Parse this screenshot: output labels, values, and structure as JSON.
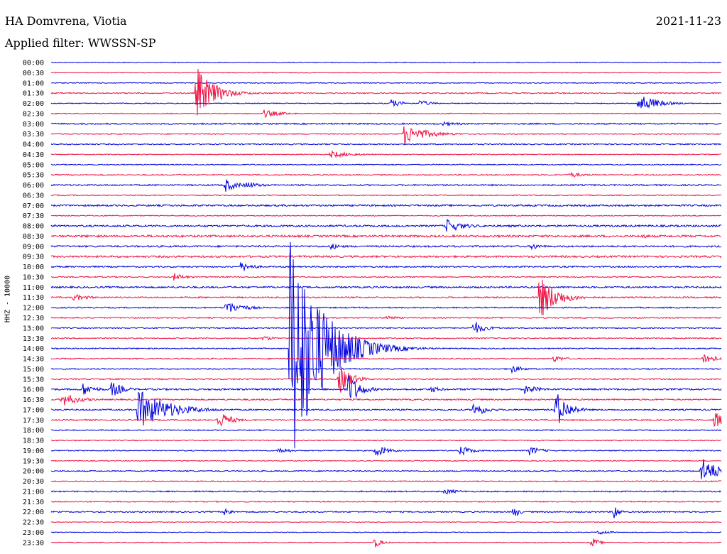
{
  "header": {
    "station": "HA Domvrena, Viotia",
    "date": "2021-11-23",
    "filter": "Applied filter: WWSSN-SP"
  },
  "colors": {
    "blue": "#0000dd",
    "red": "#ee1144"
  },
  "chart_data": {
    "type": "line",
    "title": "HA Domvrena, Viotia",
    "ylabel": "HHZ - 10000",
    "tick_labels": [
      "00:00",
      "00:30",
      "01:00",
      "01:30",
      "02:00",
      "02:30",
      "03:00",
      "03:30",
      "04:00",
      "04:30",
      "05:00",
      "05:30",
      "06:00",
      "06:30",
      "07:00",
      "07:30",
      "08:00",
      "08:30",
      "09:00",
      "09:30",
      "10:00",
      "10:30",
      "11:00",
      "11:30",
      "12:00",
      "12:30",
      "13:00",
      "13:30",
      "14:00",
      "14:30",
      "15:00",
      "15:30",
      "16:00",
      "16:30",
      "17:00",
      "17:30",
      "18:00",
      "18:30",
      "19:00",
      "19:30",
      "20:00",
      "20:30",
      "21:00",
      "21:30",
      "22:00",
      "22:30",
      "23:00",
      "23:30"
    ],
    "trace_colors": "alternating blue / red per 30-minute row",
    "trace_noise": [
      0.6,
      0.5,
      0.6,
      0.8,
      0.6,
      0.6,
      1.0,
      0.7,
      0.8,
      0.6,
      0.7,
      0.8,
      1.0,
      0.7,
      1.2,
      0.7,
      1.3,
      1.5,
      1.2,
      1.3,
      1.0,
      0.8,
      1.2,
      1.0,
      0.9,
      0.8,
      0.7,
      0.8,
      0.8,
      0.8,
      0.8,
      0.9,
      1.2,
      1.0,
      1.0,
      0.9,
      0.8,
      0.7,
      0.7,
      0.6,
      0.8,
      0.7,
      0.9,
      0.8,
      0.9,
      0.5,
      0.5,
      0.6
    ],
    "events": [
      {
        "row": 3,
        "minute": 6.5,
        "amp": 38,
        "dur": 1.5
      },
      {
        "row": 3,
        "minute": 7.2,
        "amp": 9,
        "dur": 2
      },
      {
        "row": 4,
        "minute": 15.2,
        "amp": 6,
        "dur": 1
      },
      {
        "row": 4,
        "minute": 16.5,
        "amp": 5,
        "dur": 1
      },
      {
        "row": 4,
        "minute": 26.3,
        "amp": 14,
        "dur": 1.5
      },
      {
        "row": 5,
        "minute": 9.5,
        "amp": 6,
        "dur": 1.5
      },
      {
        "row": 6,
        "minute": 17.5,
        "amp": 3,
        "dur": 2
      },
      {
        "row": 7,
        "minute": 15.8,
        "amp": 14,
        "dur": 2
      },
      {
        "row": 9,
        "minute": 12.5,
        "amp": 5,
        "dur": 2
      },
      {
        "row": 11,
        "minute": 23.2,
        "amp": 4,
        "dur": 1.5
      },
      {
        "row": 12,
        "minute": 7.8,
        "amp": 10,
        "dur": 1
      },
      {
        "row": 12,
        "minute": 8.7,
        "amp": 5,
        "dur": 1.5
      },
      {
        "row": 16,
        "minute": 17.7,
        "amp": 10,
        "dur": 1.5
      },
      {
        "row": 17,
        "minute": 26.4,
        "amp": 4,
        "dur": 1
      },
      {
        "row": 18,
        "minute": 12.5,
        "amp": 5,
        "dur": 1
      },
      {
        "row": 18,
        "minute": 21.5,
        "amp": 5,
        "dur": 1
      },
      {
        "row": 20,
        "minute": 8.5,
        "amp": 8,
        "dur": 1
      },
      {
        "row": 21,
        "minute": 5.5,
        "amp": 6,
        "dur": 1
      },
      {
        "row": 23,
        "minute": 1.0,
        "amp": 5,
        "dur": 1.5
      },
      {
        "row": 23,
        "minute": 21.8,
        "amp": 34,
        "dur": 1.5
      },
      {
        "row": 24,
        "minute": 7.8,
        "amp": 10,
        "dur": 1.5
      },
      {
        "row": 25,
        "minute": 15.0,
        "amp": 4,
        "dur": 1
      },
      {
        "row": 26,
        "minute": 18.9,
        "amp": 10,
        "dur": 1
      },
      {
        "row": 27,
        "minute": 9.5,
        "amp": 4,
        "dur": 1
      },
      {
        "row": 28,
        "minute": 10.7,
        "amp": 185,
        "dur": 2.5
      },
      {
        "row": 29,
        "minute": 29.2,
        "amp": 10,
        "dur": 1
      },
      {
        "row": 29,
        "minute": 22.5,
        "amp": 5,
        "dur": 1
      },
      {
        "row": 30,
        "minute": 20.6,
        "amp": 6,
        "dur": 1
      },
      {
        "row": 31,
        "minute": 12.9,
        "amp": 22,
        "dur": 1
      },
      {
        "row": 32,
        "minute": 1.4,
        "amp": 10,
        "dur": 1
      },
      {
        "row": 32,
        "minute": 2.7,
        "amp": 12,
        "dur": 1
      },
      {
        "row": 32,
        "minute": 13.3,
        "amp": 24,
        "dur": 1
      },
      {
        "row": 32,
        "minute": 17.0,
        "amp": 5,
        "dur": 1
      },
      {
        "row": 32,
        "minute": 21.2,
        "amp": 6,
        "dur": 1.5
      },
      {
        "row": 33,
        "minute": 0.5,
        "amp": 10,
        "dur": 1.5
      },
      {
        "row": 34,
        "minute": 3.9,
        "amp": 30,
        "dur": 2.5
      },
      {
        "row": 34,
        "minute": 18.9,
        "amp": 12,
        "dur": 1
      },
      {
        "row": 34,
        "minute": 22.6,
        "amp": 28,
        "dur": 1
      },
      {
        "row": 35,
        "minute": 7.5,
        "amp": 14,
        "dur": 1
      },
      {
        "row": 35,
        "minute": 29.7,
        "amp": 12,
        "dur": 1
      },
      {
        "row": 38,
        "minute": 10.2,
        "amp": 5,
        "dur": 1
      },
      {
        "row": 38,
        "minute": 14.5,
        "amp": 10,
        "dur": 1
      },
      {
        "row": 38,
        "minute": 18.3,
        "amp": 8,
        "dur": 1
      },
      {
        "row": 38,
        "minute": 21.4,
        "amp": 7,
        "dur": 1
      },
      {
        "row": 40,
        "minute": 29.1,
        "amp": 20,
        "dur": 1.5
      },
      {
        "row": 42,
        "minute": 17.6,
        "amp": 4,
        "dur": 1.5
      },
      {
        "row": 44,
        "minute": 7.8,
        "amp": 10,
        "dur": 0.4
      },
      {
        "row": 44,
        "minute": 20.7,
        "amp": 12,
        "dur": 0.4
      },
      {
        "row": 44,
        "minute": 25.2,
        "amp": 14,
        "dur": 0.4
      },
      {
        "row": 46,
        "minute": 24.5,
        "amp": 4,
        "dur": 1
      },
      {
        "row": 47,
        "minute": 14.5,
        "amp": 8,
        "dur": 0.6
      },
      {
        "row": 47,
        "minute": 24.2,
        "amp": 8,
        "dur": 0.6
      }
    ]
  }
}
